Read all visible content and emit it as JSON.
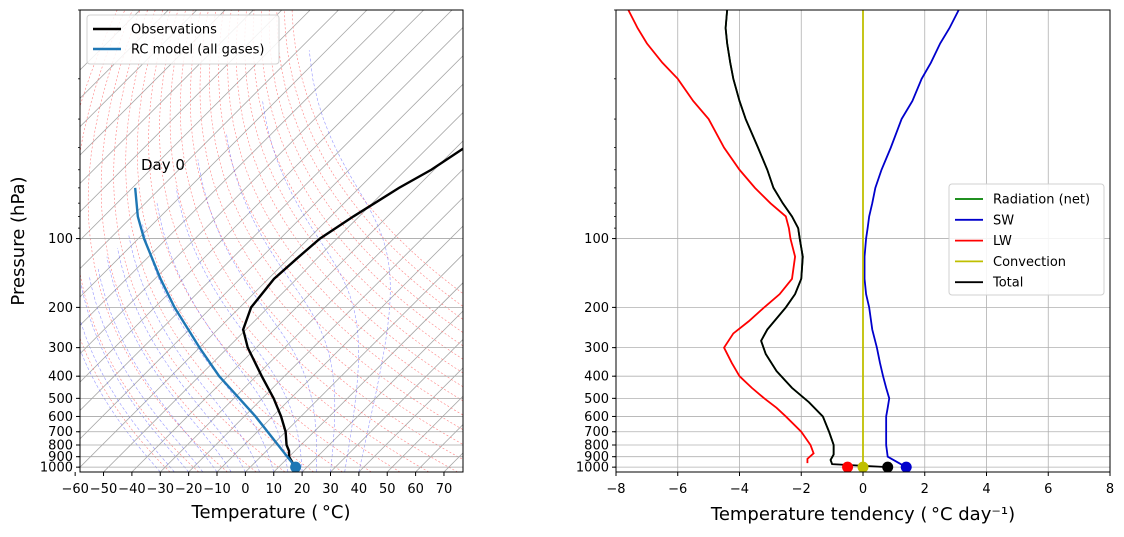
{
  "chart_data": [
    {
      "type": "line",
      "subtype": "skew-T log-P",
      "xlabel": "Temperature ( °C)",
      "ylabel": "Pressure (hPa)",
      "xlim": [
        -60,
        75
      ],
      "ylim": [
        1050,
        10
      ],
      "yscale": "log",
      "skew_factor": 1.0,
      "xticks": [
        -60,
        -50,
        -40,
        -30,
        -20,
        -10,
        0,
        10,
        20,
        30,
        40,
        50,
        60,
        70
      ],
      "yticks": [
        100,
        200,
        300,
        400,
        500,
        600,
        700,
        800,
        900,
        1000
      ],
      "grid": false,
      "background_lines": {
        "isotherm_color": "#a6a6a6",
        "dry_adiabat_color": "#ff8080",
        "moist_adiabat_color": "#6a6aff"
      },
      "annotation": "Day 0",
      "legend": {
        "placement": "top-left",
        "entries": [
          "Observations",
          "RC model (all gases)"
        ]
      },
      "series": [
        {
          "name": "Observations",
          "color": "#000000",
          "pressure": [
            1000,
            950,
            900,
            850,
            800,
            700,
            600,
            500,
            400,
            300,
            250,
            200,
            150,
            120,
            100,
            80,
            60,
            50,
            30,
            20,
            15,
            10
          ],
          "temperature": [
            15,
            13,
            10,
            8,
            5,
            0,
            -7,
            -16,
            -28,
            -43,
            -51,
            -56,
            -58,
            -57,
            -56,
            -52,
            -46,
            -41,
            -32,
            -21,
            -12,
            -1
          ]
        },
        {
          "name": "RC model (all gases)",
          "color": "#1f77b4",
          "pressure": [
            1000,
            800,
            600,
            400,
            300,
            200,
            150,
            100,
            80,
            60
          ],
          "temperature": [
            16,
            2,
            -16,
            -43,
            -60,
            -83,
            -98,
            -118,
            -128,
            -139
          ],
          "surface_marker_temperature": 16
        }
      ]
    },
    {
      "type": "line",
      "xlabel": "Temperature tendency ( °C day⁻¹)",
      "ylabel": "",
      "xlim": [
        -8,
        8
      ],
      "ylim": [
        1050,
        10
      ],
      "yscale": "log",
      "xticks": [
        -8,
        -6,
        -4,
        -2,
        0,
        2,
        4,
        6,
        8
      ],
      "yticks": [
        100,
        200,
        300,
        400,
        500,
        600,
        700,
        800,
        900,
        1000
      ],
      "grid": true,
      "legend": {
        "placement": "center-right",
        "entries": [
          "Radiation (net)",
          "SW",
          "LW",
          "Convection",
          "Total"
        ]
      },
      "series": [
        {
          "name": "Radiation (net)",
          "color": "#008000",
          "pressure": [
            10,
            12,
            14,
            17,
            20,
            25,
            30,
            40,
            50,
            60,
            70,
            80,
            90,
            100,
            120,
            150,
            175,
            200,
            250,
            280,
            320,
            380,
            450,
            520,
            600,
            700,
            800,
            880,
            930,
            970
          ],
          "values": [
            -4.4,
            -4.45,
            -4.4,
            -4.3,
            -4.2,
            -4.0,
            -3.8,
            -3.4,
            -3.1,
            -2.9,
            -2.6,
            -2.3,
            -2.1,
            -2.05,
            -1.95,
            -2.0,
            -2.2,
            -2.5,
            -3.1,
            -3.3,
            -3.15,
            -2.8,
            -2.3,
            -1.75,
            -1.3,
            -1.1,
            -0.95,
            -0.95,
            -1.05,
            -1.0
          ],
          "surface_marker": null
        },
        {
          "name": "SW",
          "color": "#0000cc",
          "pressure": [
            10,
            12,
            14,
            17,
            20,
            25,
            30,
            40,
            50,
            60,
            70,
            80,
            90,
            100,
            120,
            150,
            175,
            200,
            250,
            300,
            350,
            400,
            450,
            500,
            550,
            600,
            650,
            700,
            800,
            900,
            1000
          ],
          "values": [
            3.1,
            2.8,
            2.5,
            2.2,
            1.9,
            1.6,
            1.25,
            0.9,
            0.6,
            0.4,
            0.3,
            0.2,
            0.15,
            0.1,
            0.05,
            0.05,
            0.1,
            0.2,
            0.3,
            0.45,
            0.55,
            0.65,
            0.75,
            0.85,
            0.8,
            0.75,
            0.75,
            0.75,
            0.75,
            0.8,
            1.4
          ],
          "surface_marker": 1.4
        },
        {
          "name": "LW",
          "color": "#ff0000",
          "pressure": [
            10,
            12,
            14,
            17,
            20,
            25,
            30,
            40,
            50,
            60,
            70,
            80,
            90,
            100,
            120,
            150,
            175,
            200,
            230,
            260,
            300,
            350,
            400,
            450,
            500,
            550,
            600,
            700,
            800,
            870,
            920,
            960
          ],
          "values": [
            -7.6,
            -7.3,
            -7.0,
            -6.5,
            -6.0,
            -5.5,
            -5.0,
            -4.5,
            -4.0,
            -3.5,
            -3.0,
            -2.5,
            -2.4,
            -2.35,
            -2.2,
            -2.3,
            -2.7,
            -3.2,
            -3.7,
            -4.2,
            -4.5,
            -4.25,
            -4.0,
            -3.6,
            -3.2,
            -2.8,
            -2.5,
            -2.0,
            -1.7,
            -1.6,
            -1.8,
            -1.8
          ],
          "surface_marker": -0.5
        },
        {
          "name": "Convection",
          "color": "#bfbf00",
          "pressure": [
            10,
            1000
          ],
          "values": [
            0,
            0
          ],
          "surface_marker": 0
        },
        {
          "name": "Total",
          "color": "#000000",
          "pressure": [
            10,
            12,
            14,
            17,
            20,
            25,
            30,
            40,
            50,
            60,
            70,
            80,
            90,
            100,
            120,
            150,
            175,
            200,
            250,
            280,
            320,
            380,
            450,
            520,
            600,
            700,
            800,
            880,
            930,
            970,
            1000
          ],
          "values": [
            -4.4,
            -4.45,
            -4.4,
            -4.3,
            -4.2,
            -4.0,
            -3.8,
            -3.4,
            -3.1,
            -2.9,
            -2.6,
            -2.3,
            -2.1,
            -2.05,
            -1.95,
            -2.0,
            -2.2,
            -2.5,
            -3.1,
            -3.3,
            -3.15,
            -2.8,
            -2.3,
            -1.75,
            -1.3,
            -1.1,
            -0.95,
            -0.95,
            -1.05,
            -1.0,
            0.8
          ],
          "surface_marker": 0.8
        }
      ]
    }
  ]
}
